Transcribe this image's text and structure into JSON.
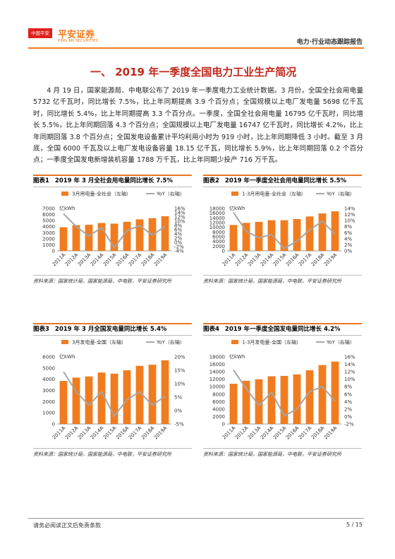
{
  "header": {
    "logo": "中国平安",
    "brand": "平安证券",
    "brand_en": "PING AN SECURITIES",
    "report": "电力·行业动态跟踪报告"
  },
  "section_title": "一、 2019 年一季度全国电力工业生产简况",
  "paragraph": "4 月 19 日，国家能源局、中电联公布了 2019 年一季度电力工业统计数据。3 月份，全国全社会用电量 5732 亿千瓦时，同比增长 7.5%，比上年同期提高 3.9 个百分点；全国规模以上电厂发电量 5698 亿千瓦时，同比增长 5.4%，比上年同期提高 3.3 个百分点。一季度，全国全社会用电量 16795 亿千瓦时，同比增长 5.5%，比上年同期回落 4.3 个百分点；全国规模以上电厂发电量 16747 亿千瓦时，同比增长 4.2%，比上年同期回落 3.8 个百分点；全国发电设备累计平均利用小时为 919 小时，比上年同期降低 3 小时。截至 3 月底，全国 6000 千瓦及以上电厂发电设备容量 18.15 亿千瓦，同比增长 5.9%，比上年同期回落 0.2 个百分点；一季度全国发电新增装机容量 1788 万千瓦，比上年同期少投产 716 万千瓦。",
  "chart_data": [
    {
      "type": "combo",
      "label": "图表1",
      "title": "2019 年 3 月全社会用电量同比增长 7.5%",
      "ylabel": "亿kWh",
      "grid": false,
      "categories": [
        "2011A",
        "2012A",
        "2013A",
        "2014A",
        "2015A",
        "2016A",
        "2017A",
        "2018A",
        "2019A"
      ],
      "series": [
        {
          "name": "3月用电量-全社会（左轴）",
          "type": "bar",
          "color": "#f07c1f",
          "values": [
            3900,
            4250,
            4300,
            4600,
            4500,
            4800,
            5200,
            5400,
            5732
          ]
        },
        {
          "name": "YoY（右轴）",
          "type": "line",
          "axis": "y2",
          "color": "#a6a6a6",
          "values": [
            13.5,
            7.5,
            3,
            7,
            -2.5,
            5.5,
            7.9,
            3.5,
            7.5
          ]
        }
      ],
      "ylim": [
        0,
        7000
      ],
      "yticks": [
        0,
        1000,
        2000,
        3000,
        4000,
        5000,
        6000,
        7000
      ],
      "y2lim": [
        -4,
        16
      ],
      "y2ticks": [
        {
          "value": -4,
          "label": "-4%"
        },
        {
          "value": -2,
          "label": "-2%"
        },
        {
          "value": 0,
          "label": "0%"
        },
        {
          "value": 2,
          "label": "2%"
        },
        {
          "value": 4,
          "label": "4%"
        },
        {
          "value": 6,
          "label": "6%"
        },
        {
          "value": 8,
          "label": "8%"
        },
        {
          "value": 10,
          "label": "10%"
        },
        {
          "value": 12,
          "label": "12%"
        },
        {
          "value": 14,
          "label": "14%"
        },
        {
          "value": 16,
          "label": "16%"
        }
      ],
      "source": "资料来源：国家统计局，国家能源局，中电联，平安证券研究所"
    },
    {
      "type": "combo",
      "label": "图表2",
      "title": "2019 年一季度全社会用电量同比增长 5.5%",
      "ylabel": "亿kWh",
      "grid": false,
      "categories": [
        "2011A",
        "2012A",
        "2013A",
        "2014A",
        "2015A",
        "2016A",
        "2017A",
        "2018A",
        "2019A"
      ],
      "series": [
        {
          "name": "1-3月用电量-全社会（左轴）",
          "type": "bar",
          "color": "#f07c1f",
          "values": [
            11000,
            11900,
            12300,
            13000,
            13000,
            13500,
            14600,
            15900,
            16795
          ]
        },
        {
          "name": "YoY（右轴）",
          "type": "line",
          "axis": "y2",
          "color": "#a6a6a6",
          "values": [
            12.7,
            6.5,
            4.3,
            5.4,
            0.8,
            3.2,
            6.9,
            9.8,
            5.5
          ]
        }
      ],
      "ylim": [
        0,
        18000
      ],
      "yticks": [
        0,
        2000,
        4000,
        6000,
        8000,
        10000,
        12000,
        14000,
        16000,
        18000
      ],
      "y2lim": [
        0,
        14
      ],
      "y2ticks": [
        {
          "value": 0,
          "label": "0%"
        },
        {
          "value": 2,
          "label": "2%"
        },
        {
          "value": 4,
          "label": "4%"
        },
        {
          "value": 6,
          "label": "6%"
        },
        {
          "value": 8,
          "label": "8%"
        },
        {
          "value": 10,
          "label": "10%"
        },
        {
          "value": 12,
          "label": "12%"
        },
        {
          "value": 14,
          "label": "14%"
        }
      ],
      "source": "资料来源：国家统计局，国家能源局，中电联，平安证券研究所"
    },
    {
      "type": "combo",
      "label": "图表3",
      "title": "2019 年 3 月全国发电量同比增长 5.4%",
      "ylabel": "亿kWh",
      "grid": false,
      "categories": [
        "2011A",
        "2012A",
        "2013A",
        "2014A",
        "2015A",
        "2016A",
        "2017A",
        "2018A",
        "2019A"
      ],
      "series": [
        {
          "name": "3月发电量-全国（左轴）",
          "type": "bar",
          "color": "#f07c1f",
          "values": [
            3850,
            4150,
            4250,
            4600,
            4500,
            4800,
            5200,
            5300,
            5698
          ]
        },
        {
          "name": "YoY（右轴）",
          "type": "line",
          "axis": "y2",
          "color": "#a6a6a6",
          "values": [
            14.5,
            7,
            2,
            7,
            -2,
            4,
            7,
            2,
            5.4
          ]
        }
      ],
      "ylim": [
        0,
        6000
      ],
      "yticks": [
        0,
        1000,
        2000,
        3000,
        4000,
        5000,
        6000
      ],
      "y2lim": [
        -5,
        20
      ],
      "y2ticks": [
        {
          "value": -5,
          "label": "-5%"
        },
        {
          "value": 0,
          "label": "0%"
        },
        {
          "value": 5,
          "label": "5%"
        },
        {
          "value": 10,
          "label": "10%"
        },
        {
          "value": 15,
          "label": "15%"
        },
        {
          "value": 20,
          "label": "20%"
        }
      ],
      "source": "资料来源：国家统计局，国家能源局，中电联，平安证券研究所"
    },
    {
      "type": "combo",
      "label": "图表4",
      "title": "2019 年一季度全国发电量同比增长 4.2%",
      "ylabel": "亿kWh",
      "grid": false,
      "categories": [
        "2011A",
        "2012A",
        "2013A",
        "2014A",
        "2015A",
        "2016A",
        "2017A",
        "2018A",
        "2019A"
      ],
      "series": [
        {
          "name": "1-3月发电量-全国（左轴）",
          "type": "bar",
          "color": "#f07c1f",
          "values": [
            10800,
            11600,
            12000,
            12800,
            12900,
            13300,
            14400,
            15800,
            16747
          ]
        },
        {
          "name": "YoY（右轴）",
          "type": "line",
          "axis": "y2",
          "color": "#a6a6a6",
          "values": [
            12.5,
            7.5,
            3,
            6.5,
            0.2,
            2,
            6.7,
            8,
            4.2
          ]
        }
      ],
      "ylim": [
        0,
        18000
      ],
      "yticks": [
        0,
        2000,
        4000,
        6000,
        8000,
        10000,
        12000,
        14000,
        16000,
        18000
      ],
      "y2lim": [
        -2,
        16
      ],
      "y2ticks": [
        {
          "value": -2,
          "label": "-2%"
        },
        {
          "value": 0,
          "label": "0%"
        },
        {
          "value": 2,
          "label": "2%"
        },
        {
          "value": 4,
          "label": "4%"
        },
        {
          "value": 6,
          "label": "6%"
        },
        {
          "value": 8,
          "label": "8%"
        },
        {
          "value": 10,
          "label": "10%"
        },
        {
          "value": 12,
          "label": "12%"
        },
        {
          "value": 14,
          "label": "14%"
        },
        {
          "value": 16,
          "label": "16%"
        }
      ],
      "source": "资料来源：国家统计局，国家能源局，中电联，平安证券研究所"
    }
  ],
  "footer": {
    "disclaimer": "请务必阅读正文后免责条款",
    "page": "5 / 15"
  }
}
